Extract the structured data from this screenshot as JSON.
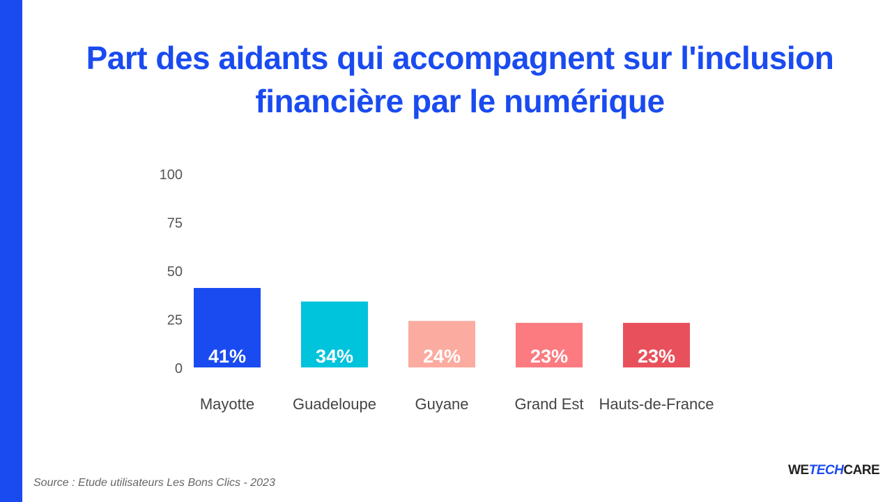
{
  "chart_data": {
    "type": "bar",
    "title": "Part des aidants qui accompagnent sur l'inclusion financière par le numérique",
    "categories": [
      "Mayotte",
      "Guadeloupe",
      "Guyane",
      "Grand Est",
      "Hauts-de-France"
    ],
    "values": [
      41,
      34,
      24,
      23,
      23
    ],
    "data_labels": [
      "41%",
      "34%",
      "24%",
      "23%",
      "23%"
    ],
    "colors": [
      "#1a4bf0",
      "#00c3dc",
      "#fbab9f",
      "#fb7b80",
      "#e8515c"
    ],
    "yticks": [
      0,
      25,
      50,
      75,
      100
    ],
    "ylim": [
      0,
      100
    ],
    "grid": false,
    "xlabel": "",
    "ylabel": ""
  },
  "source": "Source : Etude utilisateurs Les Bons Clics - 2023",
  "logo": {
    "we": "WE",
    "tech": "TECH",
    "care": "CARE"
  }
}
